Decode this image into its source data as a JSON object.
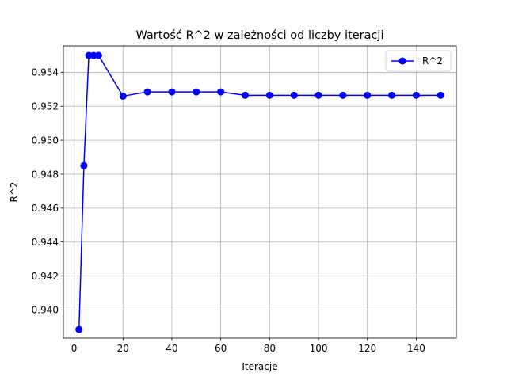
{
  "chart_data": {
    "type": "line",
    "title": "Wartość R^2 w zależności od liczby iteracji",
    "xlabel": "Iteracje",
    "ylabel": "R^2",
    "xlim": [
      -4.4,
      156.4
    ],
    "ylim": [
      0.93834,
      0.95556
    ],
    "xticks": [
      0,
      20,
      40,
      60,
      80,
      100,
      120,
      140
    ],
    "yticks": [
      0.94,
      0.942,
      0.944,
      0.946,
      0.948,
      0.95,
      0.952,
      0.954
    ],
    "grid": true,
    "legend_position": "top-right",
    "series": [
      {
        "name": "R^2",
        "color": "#0000ff",
        "marker": "circle",
        "x": [
          2,
          4,
          6,
          8,
          10,
          20,
          30,
          40,
          50,
          60,
          70,
          80,
          90,
          100,
          110,
          120,
          130,
          140,
          150
        ],
        "y": [
          0.93885,
          0.9485,
          0.955,
          0.955,
          0.955,
          0.9526,
          0.95285,
          0.95285,
          0.95285,
          0.95285,
          0.95265,
          0.95265,
          0.95265,
          0.95265,
          0.95265,
          0.95265,
          0.95265,
          0.95265,
          0.95265
        ]
      }
    ]
  }
}
